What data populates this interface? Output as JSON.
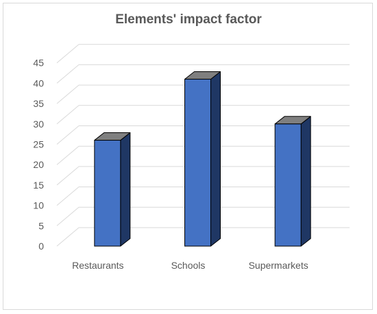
{
  "chart_data": {
    "type": "bar",
    "title": "Elements' impact factor",
    "xlabel": "",
    "ylabel": "",
    "categories": [
      "Restaurants",
      "Schools",
      "Supermarkets"
    ],
    "values": [
      26,
      41,
      30
    ],
    "ylim": [
      0,
      45
    ],
    "yticks": [
      0,
      5,
      10,
      15,
      20,
      25,
      30,
      35,
      40,
      45
    ],
    "grid": true,
    "style": "3d-column",
    "colors": {
      "front": "#4472c4",
      "side": "#1f3764",
      "top": "#7f7f7f",
      "grid": "#d9d9d9",
      "text": "#595959"
    }
  }
}
